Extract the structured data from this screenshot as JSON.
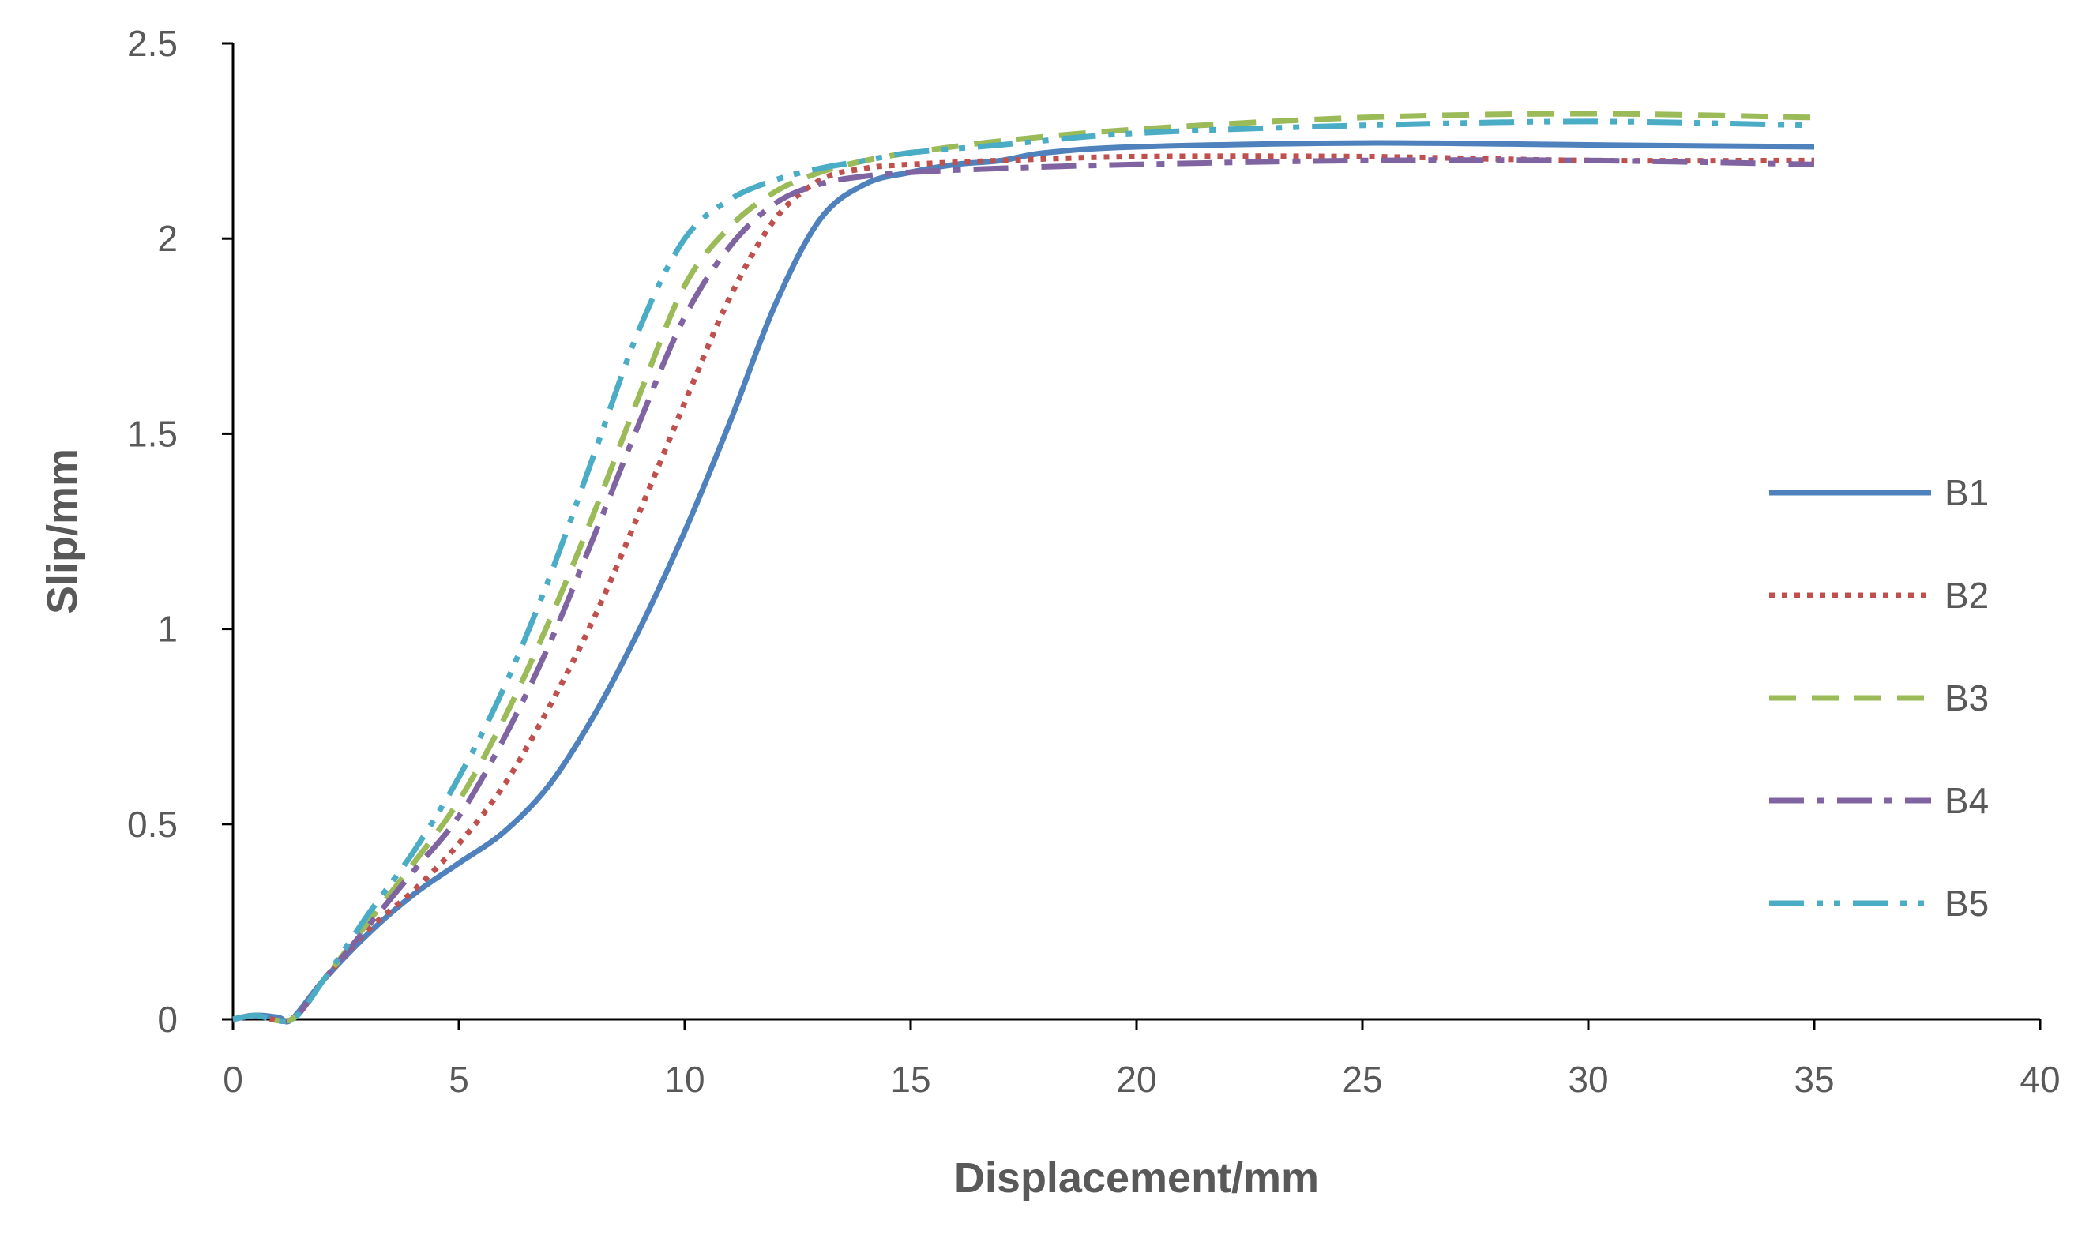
{
  "chart_data": {
    "type": "line",
    "title": "",
    "xlabel": "Displacement/mm",
    "ylabel": "Slip/mm",
    "xlim": [
      0,
      40
    ],
    "ylim": [
      0,
      2.5
    ],
    "x_ticks": [
      0,
      5,
      10,
      15,
      20,
      25,
      30,
      35,
      40
    ],
    "y_ticks": [
      0,
      0.5,
      1,
      1.5,
      2,
      2.5
    ],
    "x_tick_labels": [
      "0",
      "5",
      "10",
      "15",
      "20",
      "25",
      "30",
      "35",
      "40"
    ],
    "y_tick_labels": [
      "0",
      "0.5",
      "1",
      "1.5",
      "2",
      "2.5"
    ],
    "grid": false,
    "legend_position": "right",
    "series": [
      {
        "name": "B1",
        "color": "#4F81BD",
        "dash": "solid",
        "points": [
          [
            0,
            0
          ],
          [
            0.5,
            0.01
          ],
          [
            1,
            0.005
          ],
          [
            1.3,
            0
          ],
          [
            2,
            0.1
          ],
          [
            3,
            0.22
          ],
          [
            4,
            0.32
          ],
          [
            5,
            0.4
          ],
          [
            6,
            0.48
          ],
          [
            7,
            0.6
          ],
          [
            8,
            0.78
          ],
          [
            9,
            1.0
          ],
          [
            10,
            1.25
          ],
          [
            11,
            1.53
          ],
          [
            12,
            1.83
          ],
          [
            13,
            2.05
          ],
          [
            14,
            2.14
          ],
          [
            15,
            2.17
          ],
          [
            16,
            2.19
          ],
          [
            17,
            2.2
          ],
          [
            18,
            2.22
          ],
          [
            20,
            2.235
          ],
          [
            25,
            2.245
          ],
          [
            30,
            2.24
          ],
          [
            35,
            2.235
          ]
        ]
      },
      {
        "name": "B2",
        "color": "#C0504D",
        "dash": "dot",
        "points": [
          [
            0,
            0
          ],
          [
            0.5,
            0.01
          ],
          [
            1.3,
            0
          ],
          [
            2,
            0.1
          ],
          [
            3,
            0.23
          ],
          [
            4,
            0.33
          ],
          [
            5,
            0.45
          ],
          [
            6,
            0.6
          ],
          [
            7,
            0.8
          ],
          [
            8,
            1.03
          ],
          [
            9,
            1.3
          ],
          [
            10,
            1.58
          ],
          [
            11,
            1.85
          ],
          [
            12,
            2.05
          ],
          [
            13,
            2.15
          ],
          [
            14,
            2.18
          ],
          [
            15,
            2.19
          ],
          [
            17,
            2.2
          ],
          [
            20,
            2.21
          ],
          [
            25,
            2.21
          ],
          [
            30,
            2.2
          ],
          [
            35,
            2.2
          ]
        ]
      },
      {
        "name": "B3",
        "color": "#9BBB59",
        "dash": "dash",
        "points": [
          [
            0,
            0
          ],
          [
            0.5,
            0.01
          ],
          [
            1.3,
            0
          ],
          [
            2,
            0.1
          ],
          [
            3,
            0.25
          ],
          [
            4,
            0.4
          ],
          [
            5,
            0.56
          ],
          [
            6,
            0.77
          ],
          [
            7,
            1.02
          ],
          [
            8,
            1.3
          ],
          [
            9,
            1.6
          ],
          [
            10,
            1.88
          ],
          [
            11,
            2.03
          ],
          [
            12,
            2.12
          ],
          [
            13,
            2.17
          ],
          [
            14,
            2.2
          ],
          [
            15,
            2.22
          ],
          [
            17,
            2.25
          ],
          [
            20,
            2.28
          ],
          [
            25,
            2.31
          ],
          [
            30,
            2.32
          ],
          [
            35,
            2.31
          ]
        ]
      },
      {
        "name": "B4",
        "color": "#8064A2",
        "dash": "dash-dot",
        "points": [
          [
            0,
            0
          ],
          [
            0.5,
            0.01
          ],
          [
            1.3,
            0
          ],
          [
            2,
            0.1
          ],
          [
            3,
            0.24
          ],
          [
            4,
            0.38
          ],
          [
            5,
            0.52
          ],
          [
            6,
            0.72
          ],
          [
            7,
            0.96
          ],
          [
            8,
            1.24
          ],
          [
            9,
            1.53
          ],
          [
            10,
            1.8
          ],
          [
            11,
            1.98
          ],
          [
            12,
            2.09
          ],
          [
            13,
            2.14
          ],
          [
            14,
            2.16
          ],
          [
            15,
            2.17
          ],
          [
            17,
            2.18
          ],
          [
            20,
            2.19
          ],
          [
            25,
            2.2
          ],
          [
            30,
            2.2
          ],
          [
            35,
            2.19
          ]
        ]
      },
      {
        "name": "B5",
        "color": "#4BACC6",
        "dash": "dash-dot-dot",
        "points": [
          [
            0,
            0
          ],
          [
            0.5,
            0.01
          ],
          [
            1.3,
            0
          ],
          [
            2,
            0.1
          ],
          [
            3,
            0.27
          ],
          [
            4,
            0.43
          ],
          [
            5,
            0.62
          ],
          [
            6,
            0.85
          ],
          [
            7,
            1.13
          ],
          [
            8,
            1.45
          ],
          [
            9,
            1.77
          ],
          [
            10,
            2.0
          ],
          [
            11,
            2.1
          ],
          [
            12,
            2.15
          ],
          [
            13,
            2.18
          ],
          [
            14,
            2.2
          ],
          [
            15,
            2.22
          ],
          [
            17,
            2.24
          ],
          [
            20,
            2.27
          ],
          [
            25,
            2.29
          ],
          [
            30,
            2.3
          ],
          [
            35,
            2.29
          ]
        ]
      }
    ]
  }
}
